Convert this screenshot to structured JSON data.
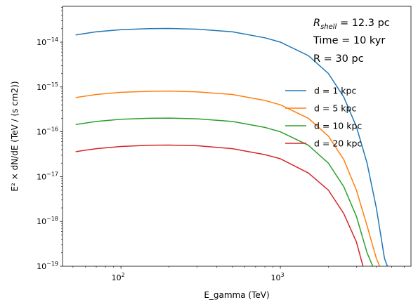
{
  "chart_data": {
    "type": "line",
    "xlabel": "E_gamma (TeV)",
    "ylabel": "E² × dN/dE (TeV / (s cm2))",
    "xscale": "log",
    "yscale": "log",
    "xlim": [
      43,
      6600
    ],
    "ylim": [
      1e-19,
      6.3e-14
    ],
    "grid": false,
    "legend_position": "right",
    "x_ticks": [
      {
        "value": 100,
        "base": "10",
        "exp": "2"
      },
      {
        "value": 1000,
        "base": "10",
        "exp": "3"
      }
    ],
    "y_ticks": [
      {
        "value": 1e-14,
        "base": "10",
        "exp": "−14"
      },
      {
        "value": 1e-15,
        "base": "10",
        "exp": "−15"
      },
      {
        "value": 1e-16,
        "base": "10",
        "exp": "−16"
      },
      {
        "value": 1e-17,
        "base": "10",
        "exp": "−17"
      },
      {
        "value": 1e-18,
        "base": "10",
        "exp": "−18"
      },
      {
        "value": 1e-19,
        "base": "10",
        "exp": "−19"
      }
    ],
    "annotations": {
      "rshell": {
        "symbol": "R",
        "subscript": "shell",
        "text": " = 12.3 pc"
      },
      "time": "Time = 10 kyr",
      "radius": "R = 30 pc"
    },
    "series": [
      {
        "name": "d = 1 kpc",
        "color": "#1f77b4",
        "points": [
          [
            52,
            1.45e-14
          ],
          [
            70,
            1.7e-14
          ],
          [
            100,
            1.9e-14
          ],
          [
            150,
            2e-14
          ],
          [
            200,
            2.02e-14
          ],
          [
            300,
            1.95e-14
          ],
          [
            500,
            1.7e-14
          ],
          [
            800,
            1.25e-14
          ],
          [
            1000,
            1e-14
          ],
          [
            1500,
            5e-15
          ],
          [
            2000,
            2e-15
          ],
          [
            2500,
            6e-16
          ],
          [
            3000,
            1.3e-16
          ],
          [
            3500,
            2e-17
          ],
          [
            4000,
            2e-18
          ],
          [
            4500,
            1.5e-19
          ],
          [
            4700,
            1e-19
          ]
        ]
      },
      {
        "name": "d = 5 kpc",
        "color": "#ff7f0e",
        "points": [
          [
            52,
            5.8e-16
          ],
          [
            70,
            6.8e-16
          ],
          [
            100,
            7.6e-16
          ],
          [
            150,
            8e-16
          ],
          [
            200,
            8.1e-16
          ],
          [
            300,
            7.8e-16
          ],
          [
            500,
            6.8e-16
          ],
          [
            800,
            5e-16
          ],
          [
            1000,
            4e-16
          ],
          [
            1500,
            2e-16
          ],
          [
            2000,
            8e-17
          ],
          [
            2500,
            2.4e-17
          ],
          [
            3000,
            5e-18
          ],
          [
            3500,
            8e-19
          ],
          [
            4000,
            1.5e-19
          ],
          [
            4200,
            1e-19
          ]
        ]
      },
      {
        "name": "d = 10 kpc",
        "color": "#2ca02c",
        "points": [
          [
            52,
            1.45e-16
          ],
          [
            70,
            1.7e-16
          ],
          [
            100,
            1.9e-16
          ],
          [
            150,
            2e-16
          ],
          [
            200,
            2.02e-16
          ],
          [
            300,
            1.95e-16
          ],
          [
            500,
            1.7e-16
          ],
          [
            800,
            1.25e-16
          ],
          [
            1000,
            1e-16
          ],
          [
            1500,
            5e-17
          ],
          [
            2000,
            2e-17
          ],
          [
            2500,
            6e-18
          ],
          [
            3000,
            1.3e-18
          ],
          [
            3500,
            2e-19
          ],
          [
            3800,
            1e-19
          ]
        ]
      },
      {
        "name": "d = 20 kpc",
        "color": "#d62728",
        "points": [
          [
            52,
            3.6e-17
          ],
          [
            70,
            4.2e-17
          ],
          [
            100,
            4.7e-17
          ],
          [
            150,
            5e-17
          ],
          [
            200,
            5.05e-17
          ],
          [
            300,
            4.9e-17
          ],
          [
            500,
            4.2e-17
          ],
          [
            800,
            3.1e-17
          ],
          [
            1000,
            2.5e-17
          ],
          [
            1500,
            1.2e-17
          ],
          [
            2000,
            5e-18
          ],
          [
            2500,
            1.5e-18
          ],
          [
            3000,
            3.5e-19
          ],
          [
            3300,
            1e-19
          ]
        ]
      }
    ]
  }
}
